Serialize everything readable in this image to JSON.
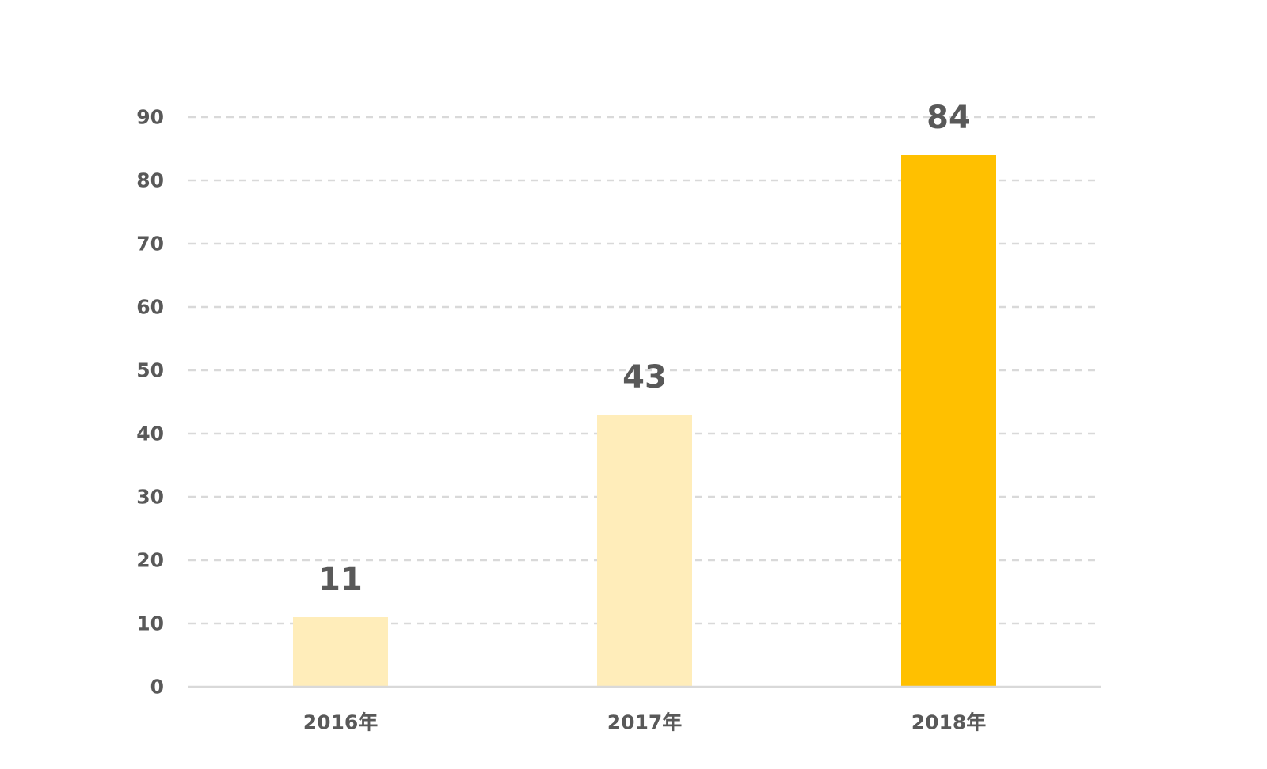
{
  "chart_data": {
    "type": "bar",
    "categories": [
      "2016年",
      "2017年",
      "2018年"
    ],
    "values": [
      11,
      43,
      84
    ],
    "data_labels": [
      "11",
      "43",
      "84"
    ],
    "title": "",
    "xlabel": "",
    "ylabel": "",
    "ylim": [
      0,
      90
    ],
    "yticks": [
      0,
      10,
      20,
      30,
      40,
      50,
      60,
      70,
      80,
      90
    ],
    "ytick_labels": [
      "0",
      "10",
      "20",
      "30",
      "40",
      "50",
      "60",
      "70",
      "80",
      "90"
    ],
    "grid": "horizontal dashed",
    "legend": "none",
    "bar_colors": [
      "#FFEDBA",
      "#FFEDBA",
      "#FFC000"
    ],
    "colors": {
      "text": "#595959",
      "grid": "#D9D9D9",
      "axis": "#D9D9D9"
    }
  }
}
